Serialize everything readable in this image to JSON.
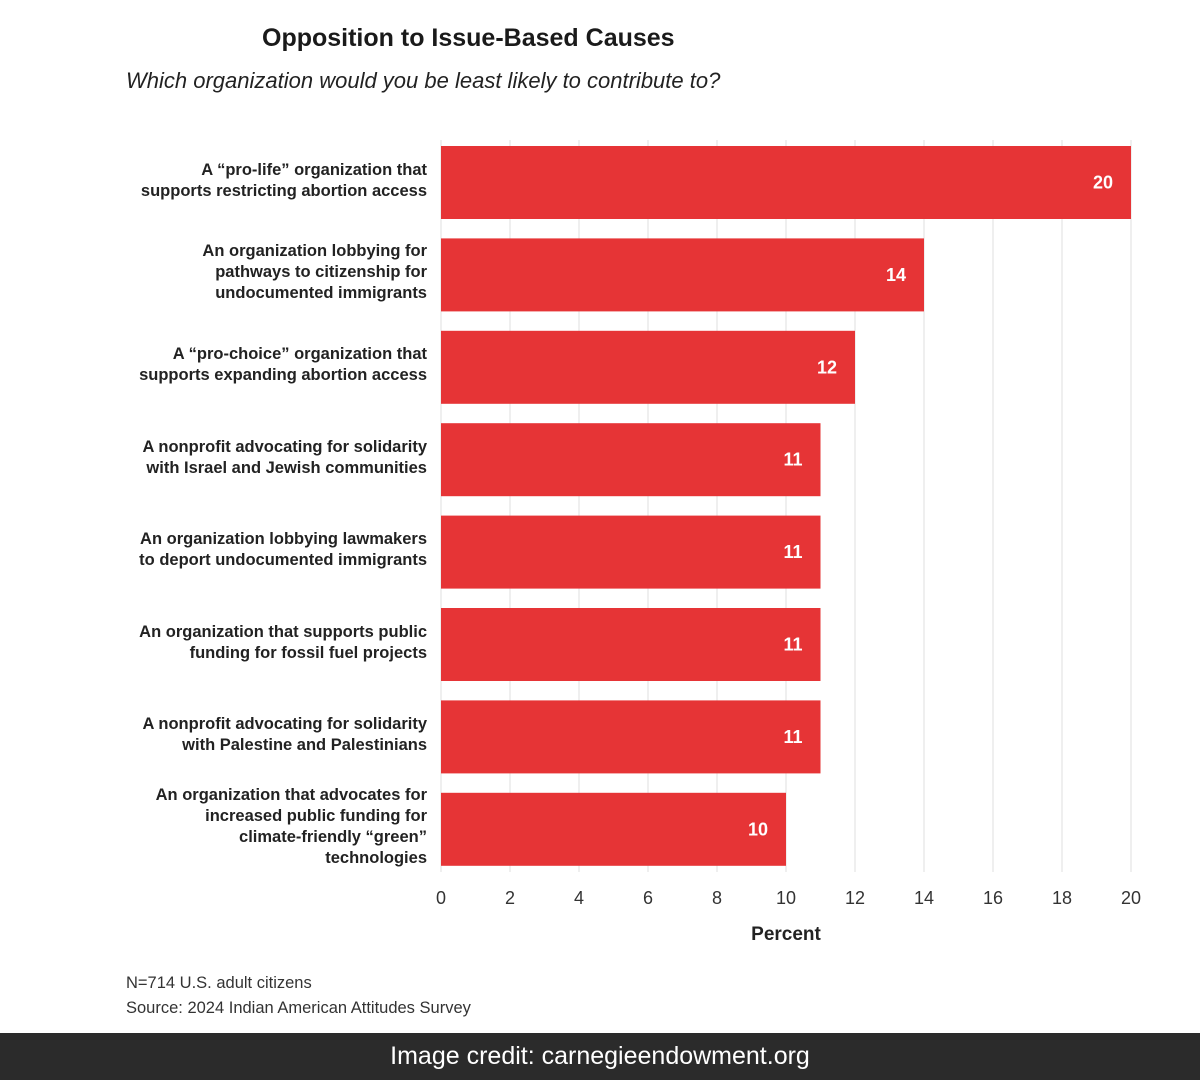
{
  "title": "Opposition to Issue-Based Causes",
  "subtitle": "Which organization would you be least likely to contribute to?",
  "footnote": {
    "sample": "N=714 U.S. adult citizens",
    "source": "Source: 2024 Indian American Attitudes Survey"
  },
  "credit": "Image credit: carnegieendowment.org",
  "colors": {
    "bar": "#e63436",
    "grid": "#e6e6e6",
    "bar_label": "#ffffff"
  },
  "chart_data": {
    "type": "bar",
    "orientation": "horizontal",
    "categories": [
      "A “pro-life” organization that\nsupports restricting abortion access",
      "An organization lobbying for\npathways to citizenship for\nundocumented immigrants",
      "A “pro-choice” organization that\nsupports expanding abortion access",
      "A nonprofit advocating for solidarity\nwith Israel and Jewish communities",
      "An organization lobbying lawmakers\nto deport undocumented immigrants",
      "An organization that supports public\nfunding for fossil fuel projects",
      "A nonprofit advocating for solidarity\nwith Palestine and Palestinians",
      "An organization that advocates for\nincreased public funding for\nclimate-friendly “green”\ntechnologies"
    ],
    "values": [
      20,
      14,
      12,
      11,
      11,
      11,
      11,
      10
    ],
    "xlabel": "Percent",
    "ylabel": "",
    "xlim": [
      0,
      20
    ],
    "xticks": [
      0,
      2,
      4,
      6,
      8,
      10,
      12,
      14,
      16,
      18,
      20
    ],
    "grid": true,
    "data_labels": true
  }
}
